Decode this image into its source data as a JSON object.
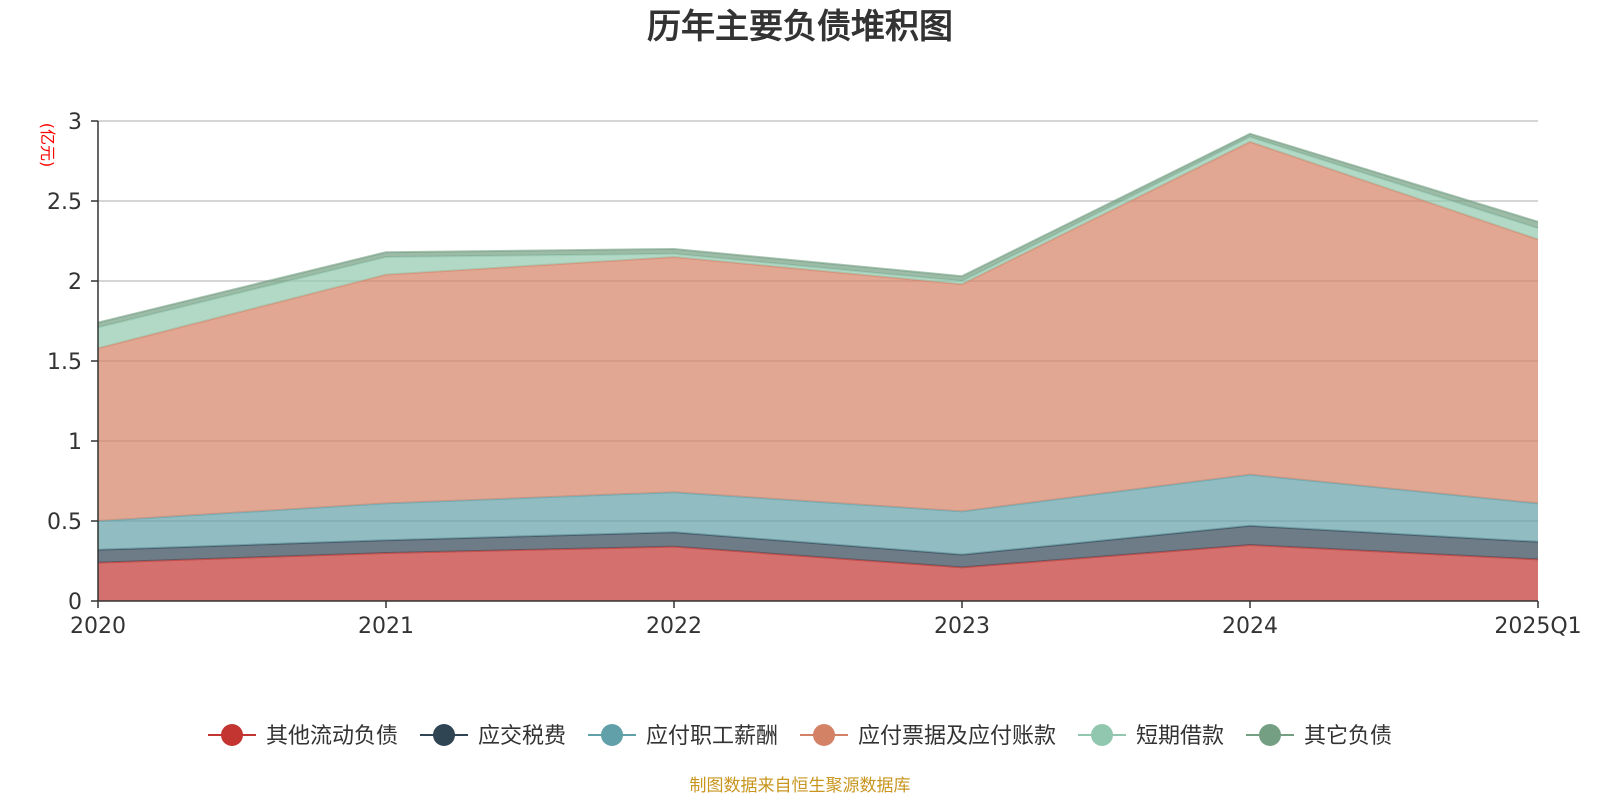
{
  "chart_data": {
    "type": "area",
    "stacked": true,
    "title": "历年主要负债堆积图",
    "y_unit_label": "(亿元)",
    "categories": [
      "2020",
      "2021",
      "2022",
      "2023",
      "2024",
      "2025Q1"
    ],
    "ylim": [
      0,
      3
    ],
    "yticks": [
      "0",
      "0.5",
      "1",
      "1.5",
      "2",
      "2.5",
      "3"
    ],
    "grid": true,
    "legend_position": "bottom",
    "series": [
      {
        "name": "其他流动负债",
        "color": "#c23531",
        "values": [
          0.24,
          0.3,
          0.34,
          0.21,
          0.35,
          0.26
        ]
      },
      {
        "name": "应交税费",
        "color": "#2f4554",
        "values": [
          0.08,
          0.08,
          0.09,
          0.08,
          0.12,
          0.11
        ]
      },
      {
        "name": "应付职工薪酬",
        "color": "#61a0a8",
        "values": [
          0.18,
          0.23,
          0.25,
          0.27,
          0.32,
          0.24
        ]
      },
      {
        "name": "应付票据及应付账款",
        "color": "#d48265",
        "values": [
          1.08,
          1.43,
          1.47,
          1.42,
          2.08,
          1.65
        ]
      },
      {
        "name": "短期借款",
        "color": "#91c7ae",
        "values": [
          0.13,
          0.11,
          0.02,
          0.02,
          0.03,
          0.07
        ]
      },
      {
        "name": "其它负债",
        "color": "#749f83",
        "values": [
          0.03,
          0.03,
          0.03,
          0.03,
          0.02,
          0.04
        ]
      }
    ],
    "source_note": "制图数据来自恒生聚源数据库"
  }
}
